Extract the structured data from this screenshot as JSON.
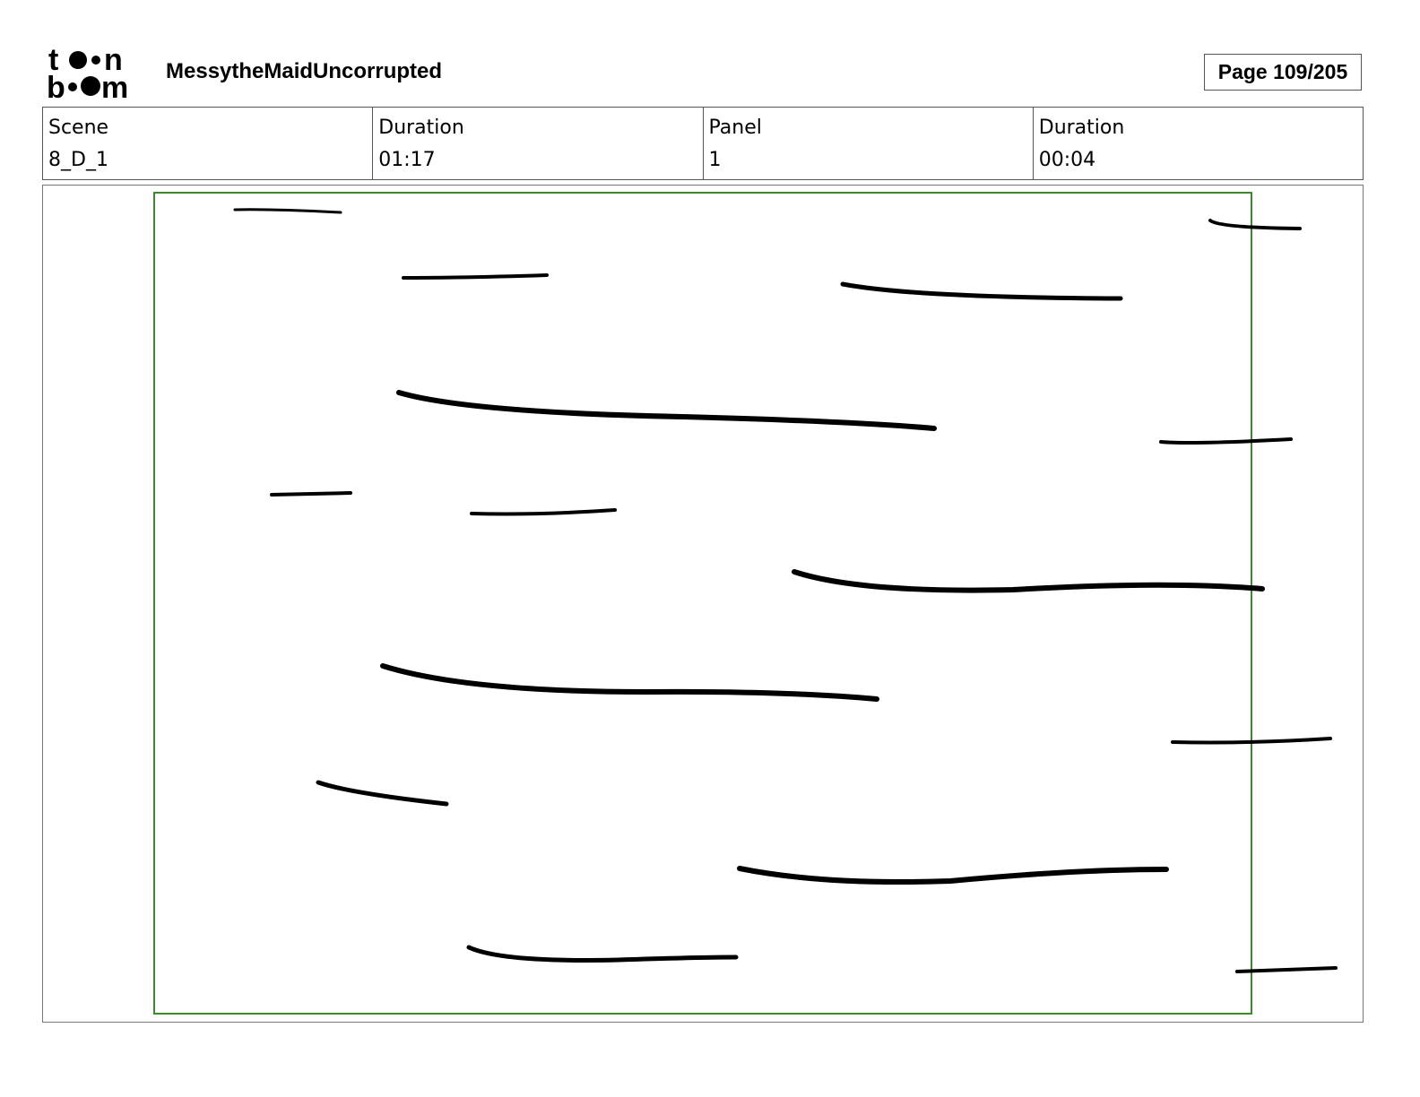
{
  "header": {
    "logo_text": "toon boom",
    "project_title": "MessytheMaidUncorrupted",
    "page_label": "Page 109/205"
  },
  "info": [
    {
      "label": "Scene",
      "value": "8_D_1"
    },
    {
      "label": "Duration",
      "value": "01:17"
    },
    {
      "label": "Panel",
      "value": "1"
    },
    {
      "label": "Duration",
      "value": "00:04"
    }
  ],
  "colors": {
    "safe_frame": "#3c8a2e",
    "ink": "#000000"
  }
}
